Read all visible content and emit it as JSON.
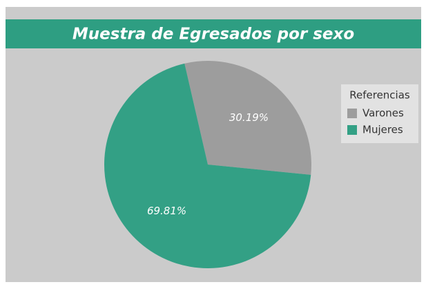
{
  "chart_data": {
    "type": "pie",
    "title": "Muestra de Egresados por sexo",
    "categories": [
      "Varones",
      "Mujeres"
    ],
    "values": [
      30.19,
      69.81
    ],
    "value_labels": [
      "30.19%",
      "69.81%"
    ],
    "colors": [
      "#9d9d9d",
      "#33a085"
    ],
    "legend_title": "Referencias",
    "legend": "right"
  }
}
